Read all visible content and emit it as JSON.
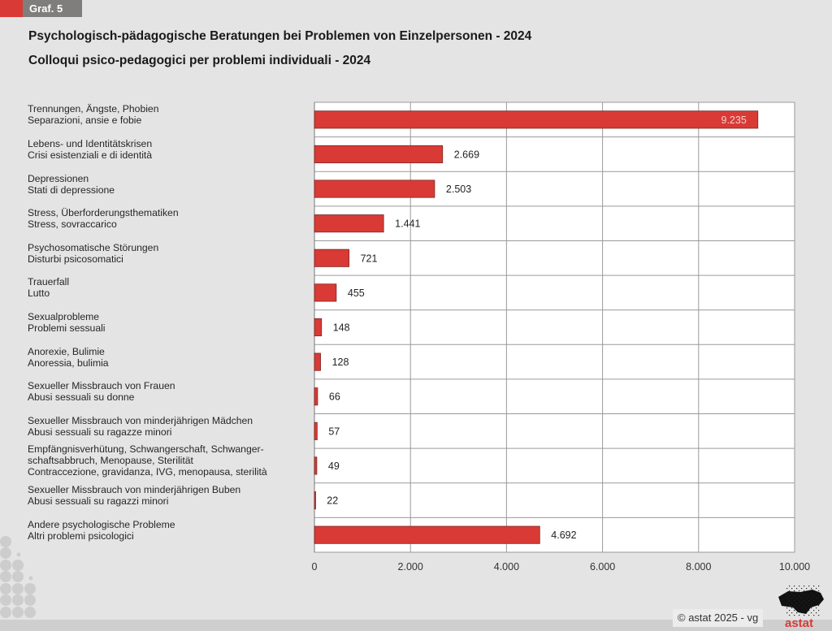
{
  "header": {
    "graph_tag": "Graf. 5",
    "title_de": "Psychologisch-pädagogische Beratungen bei Problemen von Einzelpersonen - 2024",
    "title_it": "Colloqui psico-pedagogici per problemi individuali - 2024"
  },
  "footer": {
    "copyright": "© astat 2025 - vg",
    "logo_text": "astat",
    "logo_icon": "south-tyrol-map-icon"
  },
  "colors": {
    "bar": "#d93a35",
    "accent": "#d93a35",
    "tag_bg": "#7f7e7c"
  },
  "chart_data": {
    "type": "bar",
    "orientation": "horizontal",
    "title": "Psychologisch-pädagogische Beratungen bei Problemen von Einzelpersonen - 2024 / Colloqui psico-pedagogici per problemi individuali - 2024",
    "xlabel": "",
    "ylabel": "",
    "xlim": [
      0,
      10000
    ],
    "grid": true,
    "x_ticks": [
      0,
      2000,
      4000,
      6000,
      8000,
      10000
    ],
    "x_tick_labels": [
      "0",
      "2.000",
      "4.000",
      "6.000",
      "8.000",
      "10.000"
    ],
    "categories": [
      [
        "Trennungen, Ängste, Phobien",
        "Separazioni, ansie e fobie"
      ],
      [
        "Lebens- und Identitätskrisen",
        "Crisi esistenziali e di identità"
      ],
      [
        "Depressionen",
        "Stati di depressione"
      ],
      [
        "Stress, Überforderungsthematiken",
        "Stress, sovraccarico"
      ],
      [
        "Psychosomatische Störungen",
        "Disturbi psicosomatici"
      ],
      [
        "Trauerfall",
        "Lutto"
      ],
      [
        "Sexualprobleme",
        "Problemi sessuali"
      ],
      [
        "Anorexie, Bulimie",
        "Anoressia, bulimia"
      ],
      [
        "Sexueller Missbrauch von Frauen",
        "Abusi sessuali su donne"
      ],
      [
        "Sexueller Missbrauch von minderjährigen Mädchen",
        "Abusi sessuali su ragazze minori"
      ],
      [
        "Empfängnisverhütung, Schwangerschaft, Schwanger-",
        "schaftsabbruch, Menopause, Sterilität",
        "Contraccezione, gravidanza, IVG, menopausa, sterilità"
      ],
      [
        "Sexueller Missbrauch von minderjährigen Buben",
        "Abusi sessuali su ragazzi minori"
      ],
      [
        "Andere psychologische Probleme",
        "Altri problemi psicologici"
      ]
    ],
    "values": [
      9235,
      2669,
      2503,
      1441,
      721,
      455,
      148,
      128,
      66,
      57,
      49,
      22,
      4692
    ],
    "value_labels": [
      "9.235",
      "2.669",
      "2.503",
      "1.441",
      "721",
      "455",
      "148",
      "128",
      "66",
      "57",
      "49",
      "22",
      "4.692"
    ]
  }
}
